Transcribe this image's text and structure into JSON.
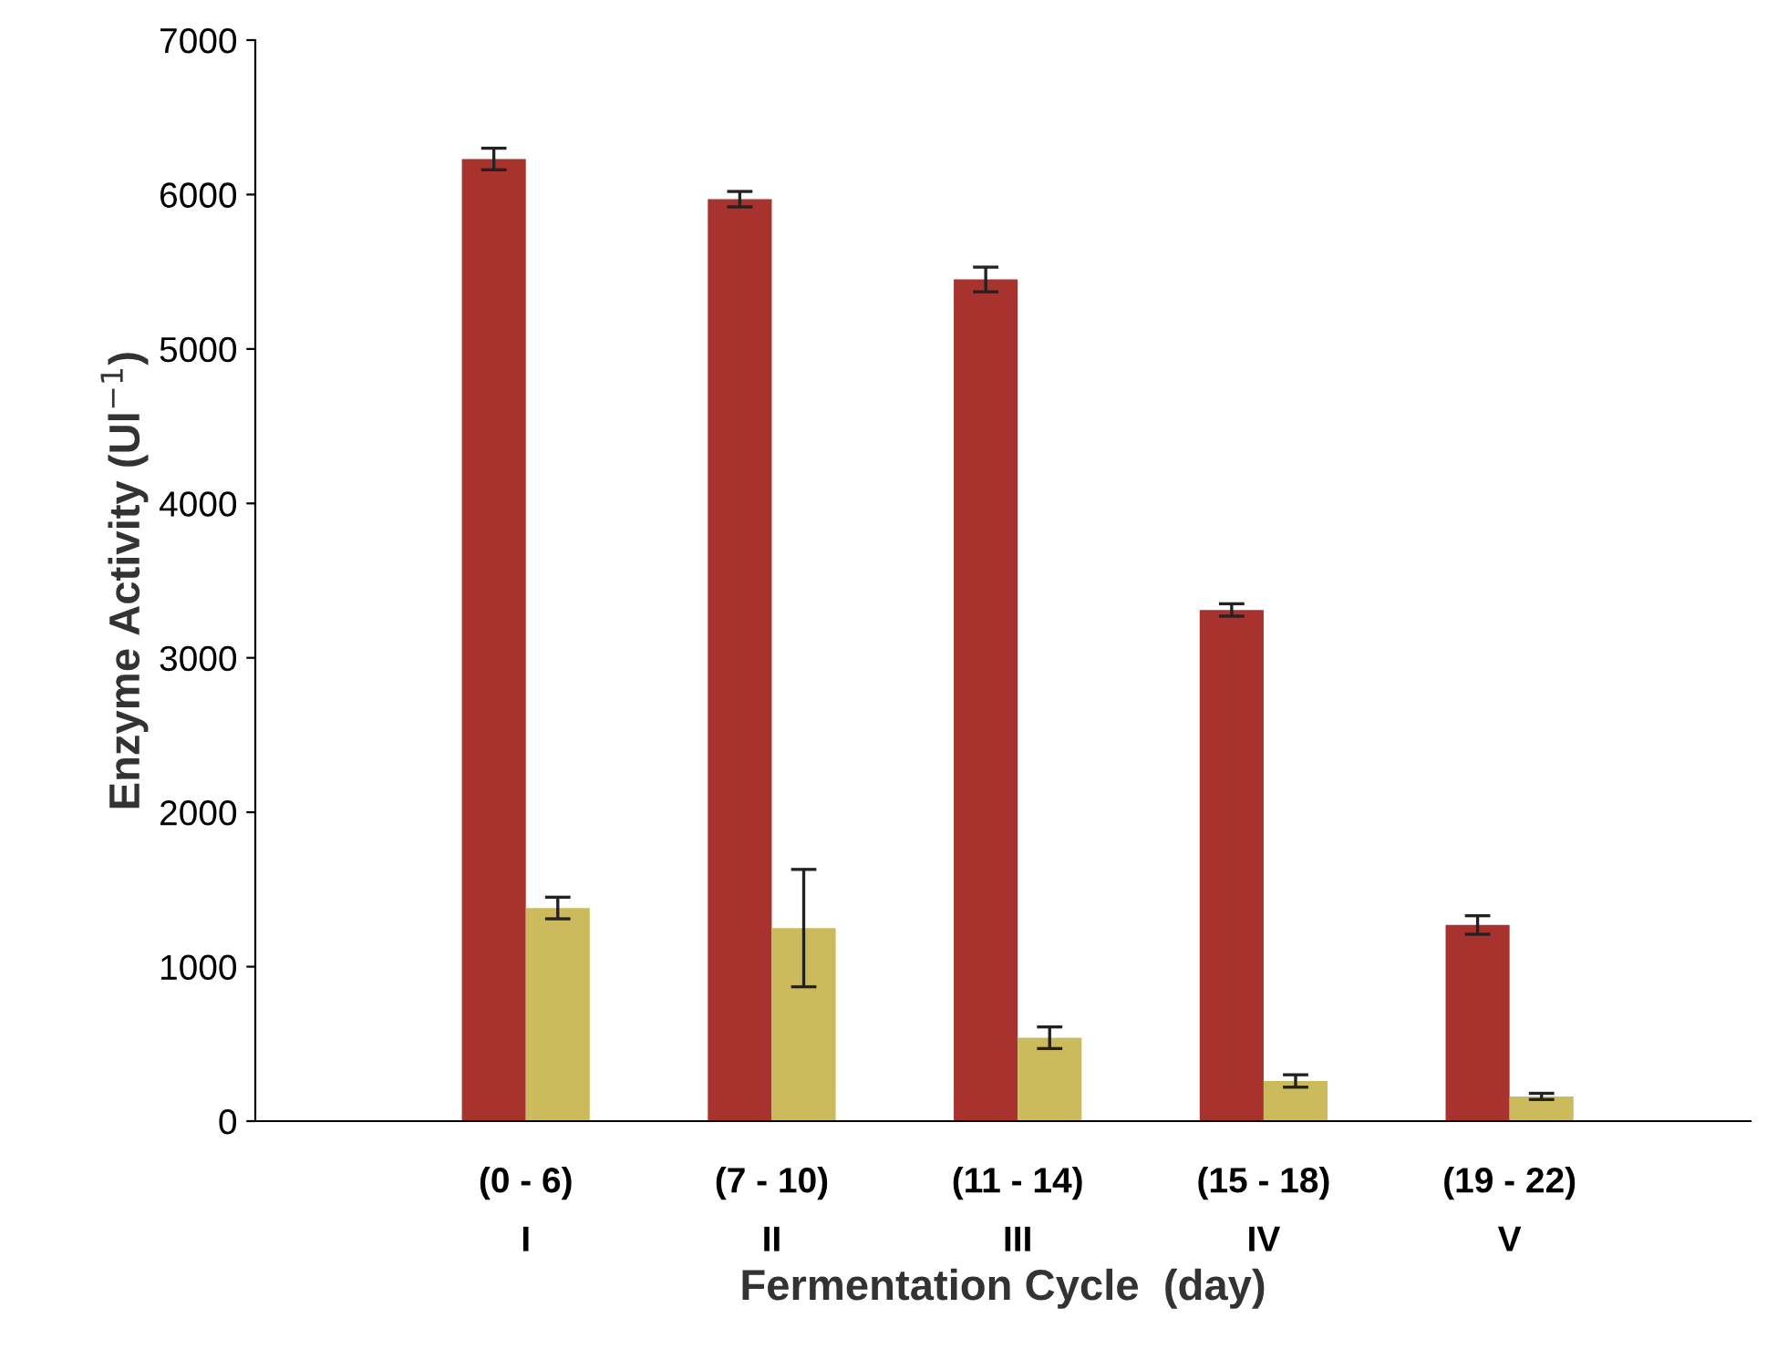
{
  "chart_data": {
    "type": "bar",
    "xlabel": "Fermentation Cycle  (day)",
    "ylabel": "Enzyme Activity (Ul$^{−1}$)",
    "categories": [
      "(0 - 6)\nI",
      "(7 - 10)\nII",
      "(11 - 14)\nIII",
      "(15 - 18)\nIV",
      "(19 - 22)\nV"
    ],
    "series": [
      {
        "color": "#a8322d",
        "values": [
          6230,
          5970,
          5450,
          3310,
          1270
        ],
        "errors": [
          70,
          50,
          80,
          40,
          60
        ]
      },
      {
        "color": "#cbbb5c",
        "values": [
          1380,
          1250,
          540,
          260,
          160
        ],
        "errors": [
          70,
          380,
          70,
          40,
          20
        ]
      }
    ],
    "ylim": [
      0,
      7000
    ],
    "yticks": [
      0,
      1000,
      2000,
      3000,
      4000,
      5000,
      6000,
      7000
    ],
    "grid": false,
    "legend": false
  }
}
